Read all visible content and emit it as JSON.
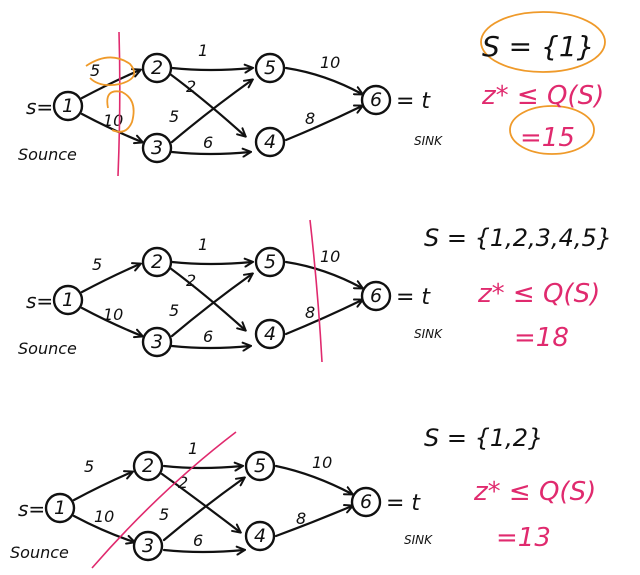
{
  "labels": {
    "node_ids": [
      "1",
      "2",
      "3",
      "4",
      "5",
      "6"
    ],
    "source_prefix": "s=",
    "source_word": "Sounce",
    "sink_prefix": "= t",
    "sink_word": "SINK",
    "edge_weights": {
      "e12": "5",
      "e13": "10",
      "e25": "1",
      "e24": "2",
      "e35": "5",
      "e34": "6",
      "e56": "10",
      "e46": "8"
    }
  },
  "colors": {
    "ink": "#111111",
    "pink_annotation": "#e02a6e",
    "orange_highlight": "#ef9a2a"
  },
  "cuts": [
    {
      "set": "S = {1}",
      "inequality": "z* ≤ Q(S)",
      "value": "=15",
      "cut_color": "#e02a6e",
      "highlight_color": "#ef9a2a"
    },
    {
      "set": "S = {1,2,3,4,5}",
      "inequality": "z* ≤ Q(S)",
      "value": "=18",
      "cut_color": "#e02a6e"
    },
    {
      "set": "S = {1,2}",
      "inequality": "z* ≤ Q(S)",
      "value": "=13",
      "cut_color": "#e02a6e"
    }
  ]
}
